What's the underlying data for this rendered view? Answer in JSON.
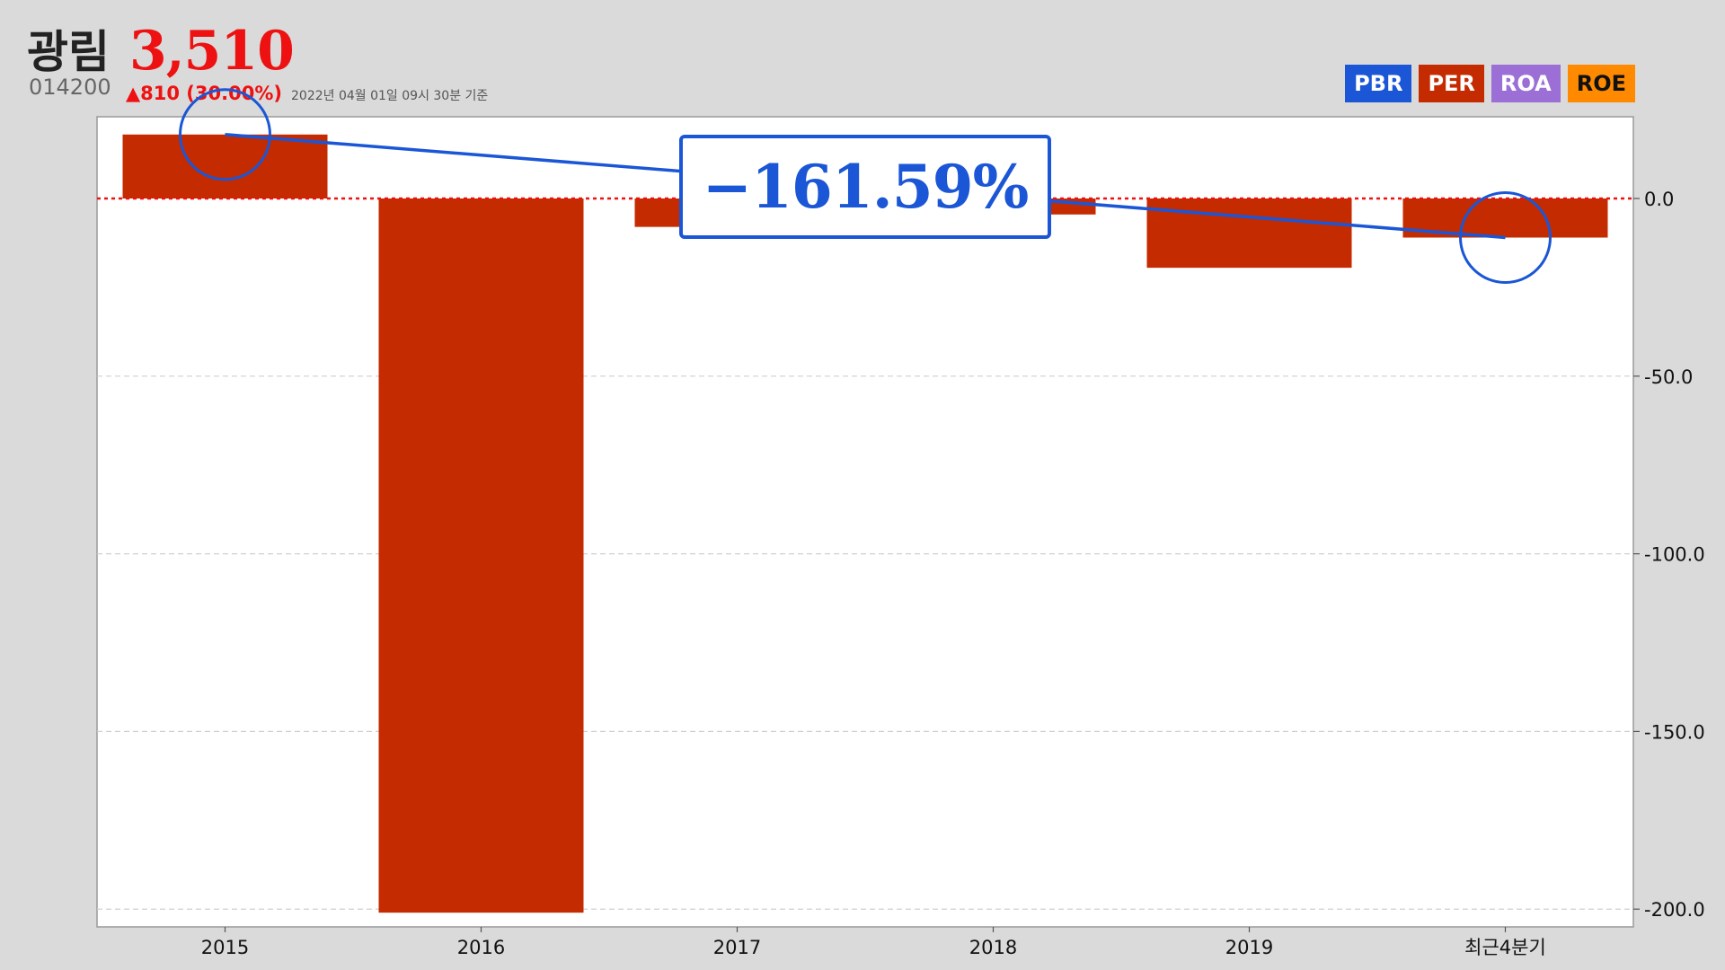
{
  "header": {
    "name": "광림",
    "price": "3,510",
    "code": "014200",
    "change": "▲810 (30.00%)",
    "timestamp": "2022년 04월 01일 09시 30분 기준"
  },
  "tabs": [
    {
      "label": "PBR",
      "color": "#1a56d6"
    },
    {
      "label": "PER",
      "color": "#c42b00"
    },
    {
      "label": "ROA",
      "color": "#9b6fd6"
    },
    {
      "label": "ROE",
      "color": "#ff8a00"
    }
  ],
  "callout": {
    "text": "−161.59%",
    "color": "#1a56d6",
    "from_category": "2015",
    "to_category": "최근4분기"
  },
  "chart_data": {
    "type": "bar",
    "categories": [
      "2015",
      "2016",
      "2017",
      "2018",
      "2019",
      "최근4분기"
    ],
    "values": [
      18,
      -201,
      -8,
      -4.5,
      -19.5,
      -11
    ],
    "ylim": [
      -205,
      23
    ],
    "yticks": [
      0,
      -50,
      -100,
      -150,
      -200
    ],
    "ytick_labels": [
      "0.0",
      "-50.0",
      "-100.0",
      "-150.0",
      "-200.0"
    ],
    "bar_color": "#c42b00",
    "zero_line_color": "#ee1111",
    "grid": true,
    "y_axis_side": "right"
  }
}
